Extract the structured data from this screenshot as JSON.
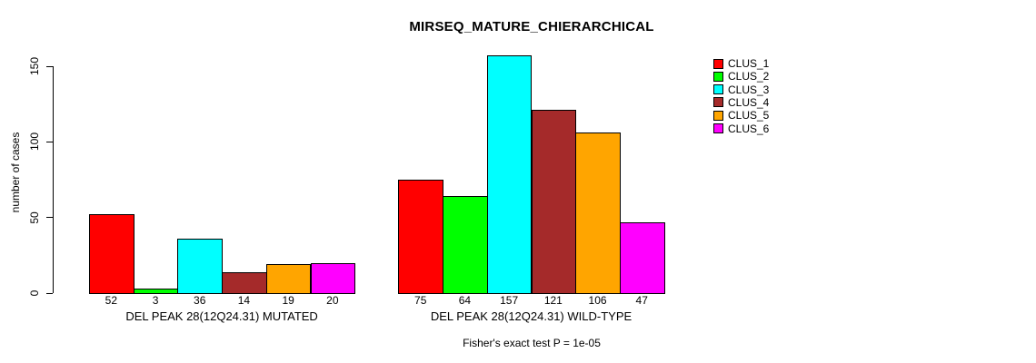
{
  "chart_data": {
    "type": "bar",
    "title": "MIRSEQ_MATURE_CHIERARCHICAL",
    "ylabel": "number of cases",
    "xlabel": "",
    "ylim": [
      0,
      150
    ],
    "yticks": [
      0,
      50,
      100,
      150
    ],
    "grid": false,
    "legend_position": "top-right",
    "legend": [
      {
        "label": "CLUS_1",
        "color": "#FF0000"
      },
      {
        "label": "CLUS_2",
        "color": "#00FF00"
      },
      {
        "label": "CLUS_3",
        "color": "#00FFFF"
      },
      {
        "label": "CLUS_4",
        "color": "#A52A2A"
      },
      {
        "label": "CLUS_5",
        "color": "#FFA500"
      },
      {
        "label": "CLUS_6",
        "color": "#FF00FF"
      }
    ],
    "groups": [
      {
        "label": "DEL PEAK 28(12Q24.31) MUTATED",
        "values": [
          52,
          3,
          36,
          14,
          19,
          20
        ]
      },
      {
        "label": "DEL PEAK 28(12Q24.31) WILD-TYPE",
        "values": [
          75,
          64,
          157,
          121,
          106,
          47
        ]
      }
    ],
    "footnote": "Fisher's exact test P = 1e-05"
  }
}
